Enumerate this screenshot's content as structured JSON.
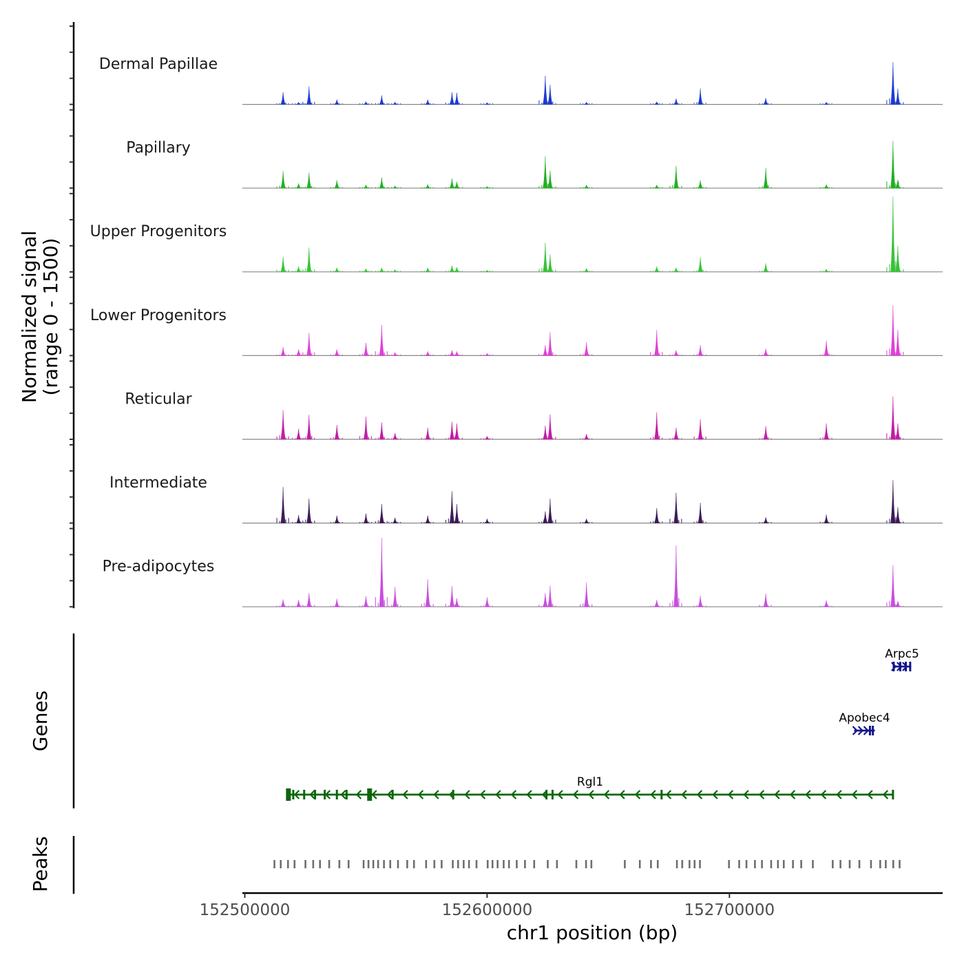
{
  "chart_data": {
    "type": "area",
    "title": "",
    "chromosome": "chr1",
    "xlabel": "chr1 position (bp)",
    "ylabel_line1": "Normalized signal",
    "ylabel_line2": "(range 0 - 1500)",
    "xlim": [
      152499000,
      152788000
    ],
    "ylim": [
      0,
      1500
    ],
    "x_ticks": [
      152500000,
      152600000,
      152700000
    ],
    "x_tick_labels": [
      "152500000",
      "152600000",
      "152700000"
    ],
    "baseline_color": "#888888",
    "peaks": [
      {
        "pos": 152515800,
        "rel": 0.32
      },
      {
        "pos": 152522200,
        "rel": 0.12
      },
      {
        "pos": 152526500,
        "rel": 0.45
      },
      {
        "pos": 152538000,
        "rel": 0.14
      },
      {
        "pos": 152550000,
        "rel": 0.22
      },
      {
        "pos": 152556500,
        "rel": 0.28
      },
      {
        "pos": 152562000,
        "rel": 0.12
      },
      {
        "pos": 152575500,
        "rel": 0.14
      },
      {
        "pos": 152585500,
        "rel": 0.3
      },
      {
        "pos": 152587500,
        "rel": 0.28
      },
      {
        "pos": 152600000,
        "rel": 0.1
      },
      {
        "pos": 152624000,
        "rel": 0.6
      },
      {
        "pos": 152626000,
        "rel": 0.45
      },
      {
        "pos": 152641000,
        "rel": 0.16
      },
      {
        "pos": 152670000,
        "rel": 0.18
      },
      {
        "pos": 152678000,
        "rel": 0.22
      },
      {
        "pos": 152688000,
        "rel": 0.32
      },
      {
        "pos": 152715000,
        "rel": 0.18
      },
      {
        "pos": 152740000,
        "rel": 0.12
      },
      {
        "pos": 152767500,
        "rel": 1.0
      },
      {
        "pos": 152769500,
        "rel": 0.3
      }
    ],
    "series": [
      {
        "name": "Dermal Papillae",
        "color": "#1f3bd1",
        "peak_values": [
          230,
          40,
          340,
          90,
          50,
          170,
          40,
          90,
          230,
          220,
          30,
          540,
          370,
          40,
          50,
          110,
          300,
          120,
          40,
          800,
          300
        ]
      },
      {
        "name": "Papillary",
        "color": "#22b022",
        "peak_values": [
          320,
          90,
          290,
          150,
          60,
          200,
          40,
          70,
          180,
          120,
          30,
          600,
          330,
          60,
          60,
          420,
          150,
          380,
          70,
          890,
          160
        ]
      },
      {
        "name": "Upper Progenitors",
        "color": "#3ac23a",
        "peak_values": [
          290,
          100,
          460,
          80,
          60,
          80,
          40,
          80,
          120,
          90,
          30,
          550,
          330,
          70,
          100,
          80,
          280,
          160,
          50,
          1420,
          490
        ]
      },
      {
        "name": "Lower Progenitors",
        "color": "#e040d8",
        "peak_values": [
          160,
          120,
          430,
          120,
          240,
          580,
          60,
          80,
          100,
          80,
          40,
          200,
          440,
          250,
          480,
          100,
          200,
          130,
          280,
          950,
          490
        ]
      },
      {
        "name": "Reticular",
        "color": "#c21ea6",
        "peak_values": [
          550,
          200,
          460,
          270,
          430,
          320,
          120,
          220,
          330,
          300,
          60,
          260,
          470,
          100,
          510,
          220,
          380,
          250,
          300,
          810,
          300
        ]
      },
      {
        "name": "Intermediate",
        "color": "#3c1b59",
        "peak_values": [
          680,
          150,
          460,
          140,
          180,
          360,
          100,
          140,
          600,
          360,
          80,
          220,
          460,
          80,
          280,
          570,
          380,
          110,
          160,
          810,
          300
        ]
      },
      {
        "name": "Pre-adipocytes",
        "color": "#c94de0",
        "peak_values": [
          140,
          130,
          260,
          150,
          200,
          1300,
          380,
          520,
          390,
          160,
          180,
          260,
          400,
          460,
          130,
          1160,
          210,
          250,
          120,
          790,
          110
        ]
      }
    ],
    "genes_track_label": "Genes",
    "peaks_track_label": "Peaks",
    "genes": [
      {
        "name": "Arpc5",
        "strand": "+",
        "start": 152767500,
        "end": 152775000,
        "color": "#14148c",
        "exons": [
          152767800,
          152770500,
          152772800,
          152774600
        ]
      },
      {
        "name": "Apobec4",
        "strand": "+",
        "start": 152751500,
        "end": 152760000,
        "color": "#14148c",
        "exons": [
          152758000,
          152759200
        ]
      },
      {
        "name": "Rgl1",
        "strand": "-",
        "start": 152517500,
        "end": 152767500,
        "color": "#0b660b",
        "exons": [
          152518000,
          152520000,
          152524500,
          152529000,
          152533000,
          152538000,
          152542000,
          152551500,
          152552000,
          152561000,
          152586000,
          152624500,
          152627000,
          152672000,
          152767500
        ]
      }
    ],
    "peak_regions": [
      152512200,
      152514800,
      152517800,
      152520500,
      152525000,
      152528200,
      152531000,
      152534800,
      152539000,
      152542800,
      152549000,
      152551000,
      152553000,
      152555000,
      152557400,
      152560000,
      152563200,
      152567000,
      152569800,
      152574800,
      152578200,
      152581200,
      152585800,
      152588000,
      152590300,
      152592500,
      152595600,
      152600200,
      152602200,
      152604300,
      152606800,
      152609000,
      152612200,
      152615600,
      152619400,
      152625000,
      152628800,
      152636800,
      152640800,
      152643000,
      152656800,
      152663000,
      152667600,
      152670400,
      152678300,
      152680500,
      152683500,
      152685600,
      152687800,
      152699800,
      152704000,
      152707000,
      152710500,
      152713400,
      152717200,
      152720000,
      152722400,
      152726200,
      152729600,
      152734400,
      152742600,
      152745800,
      152749600,
      152753600,
      152758400,
      152762200,
      152764500,
      152767600,
      152770200
    ]
  }
}
